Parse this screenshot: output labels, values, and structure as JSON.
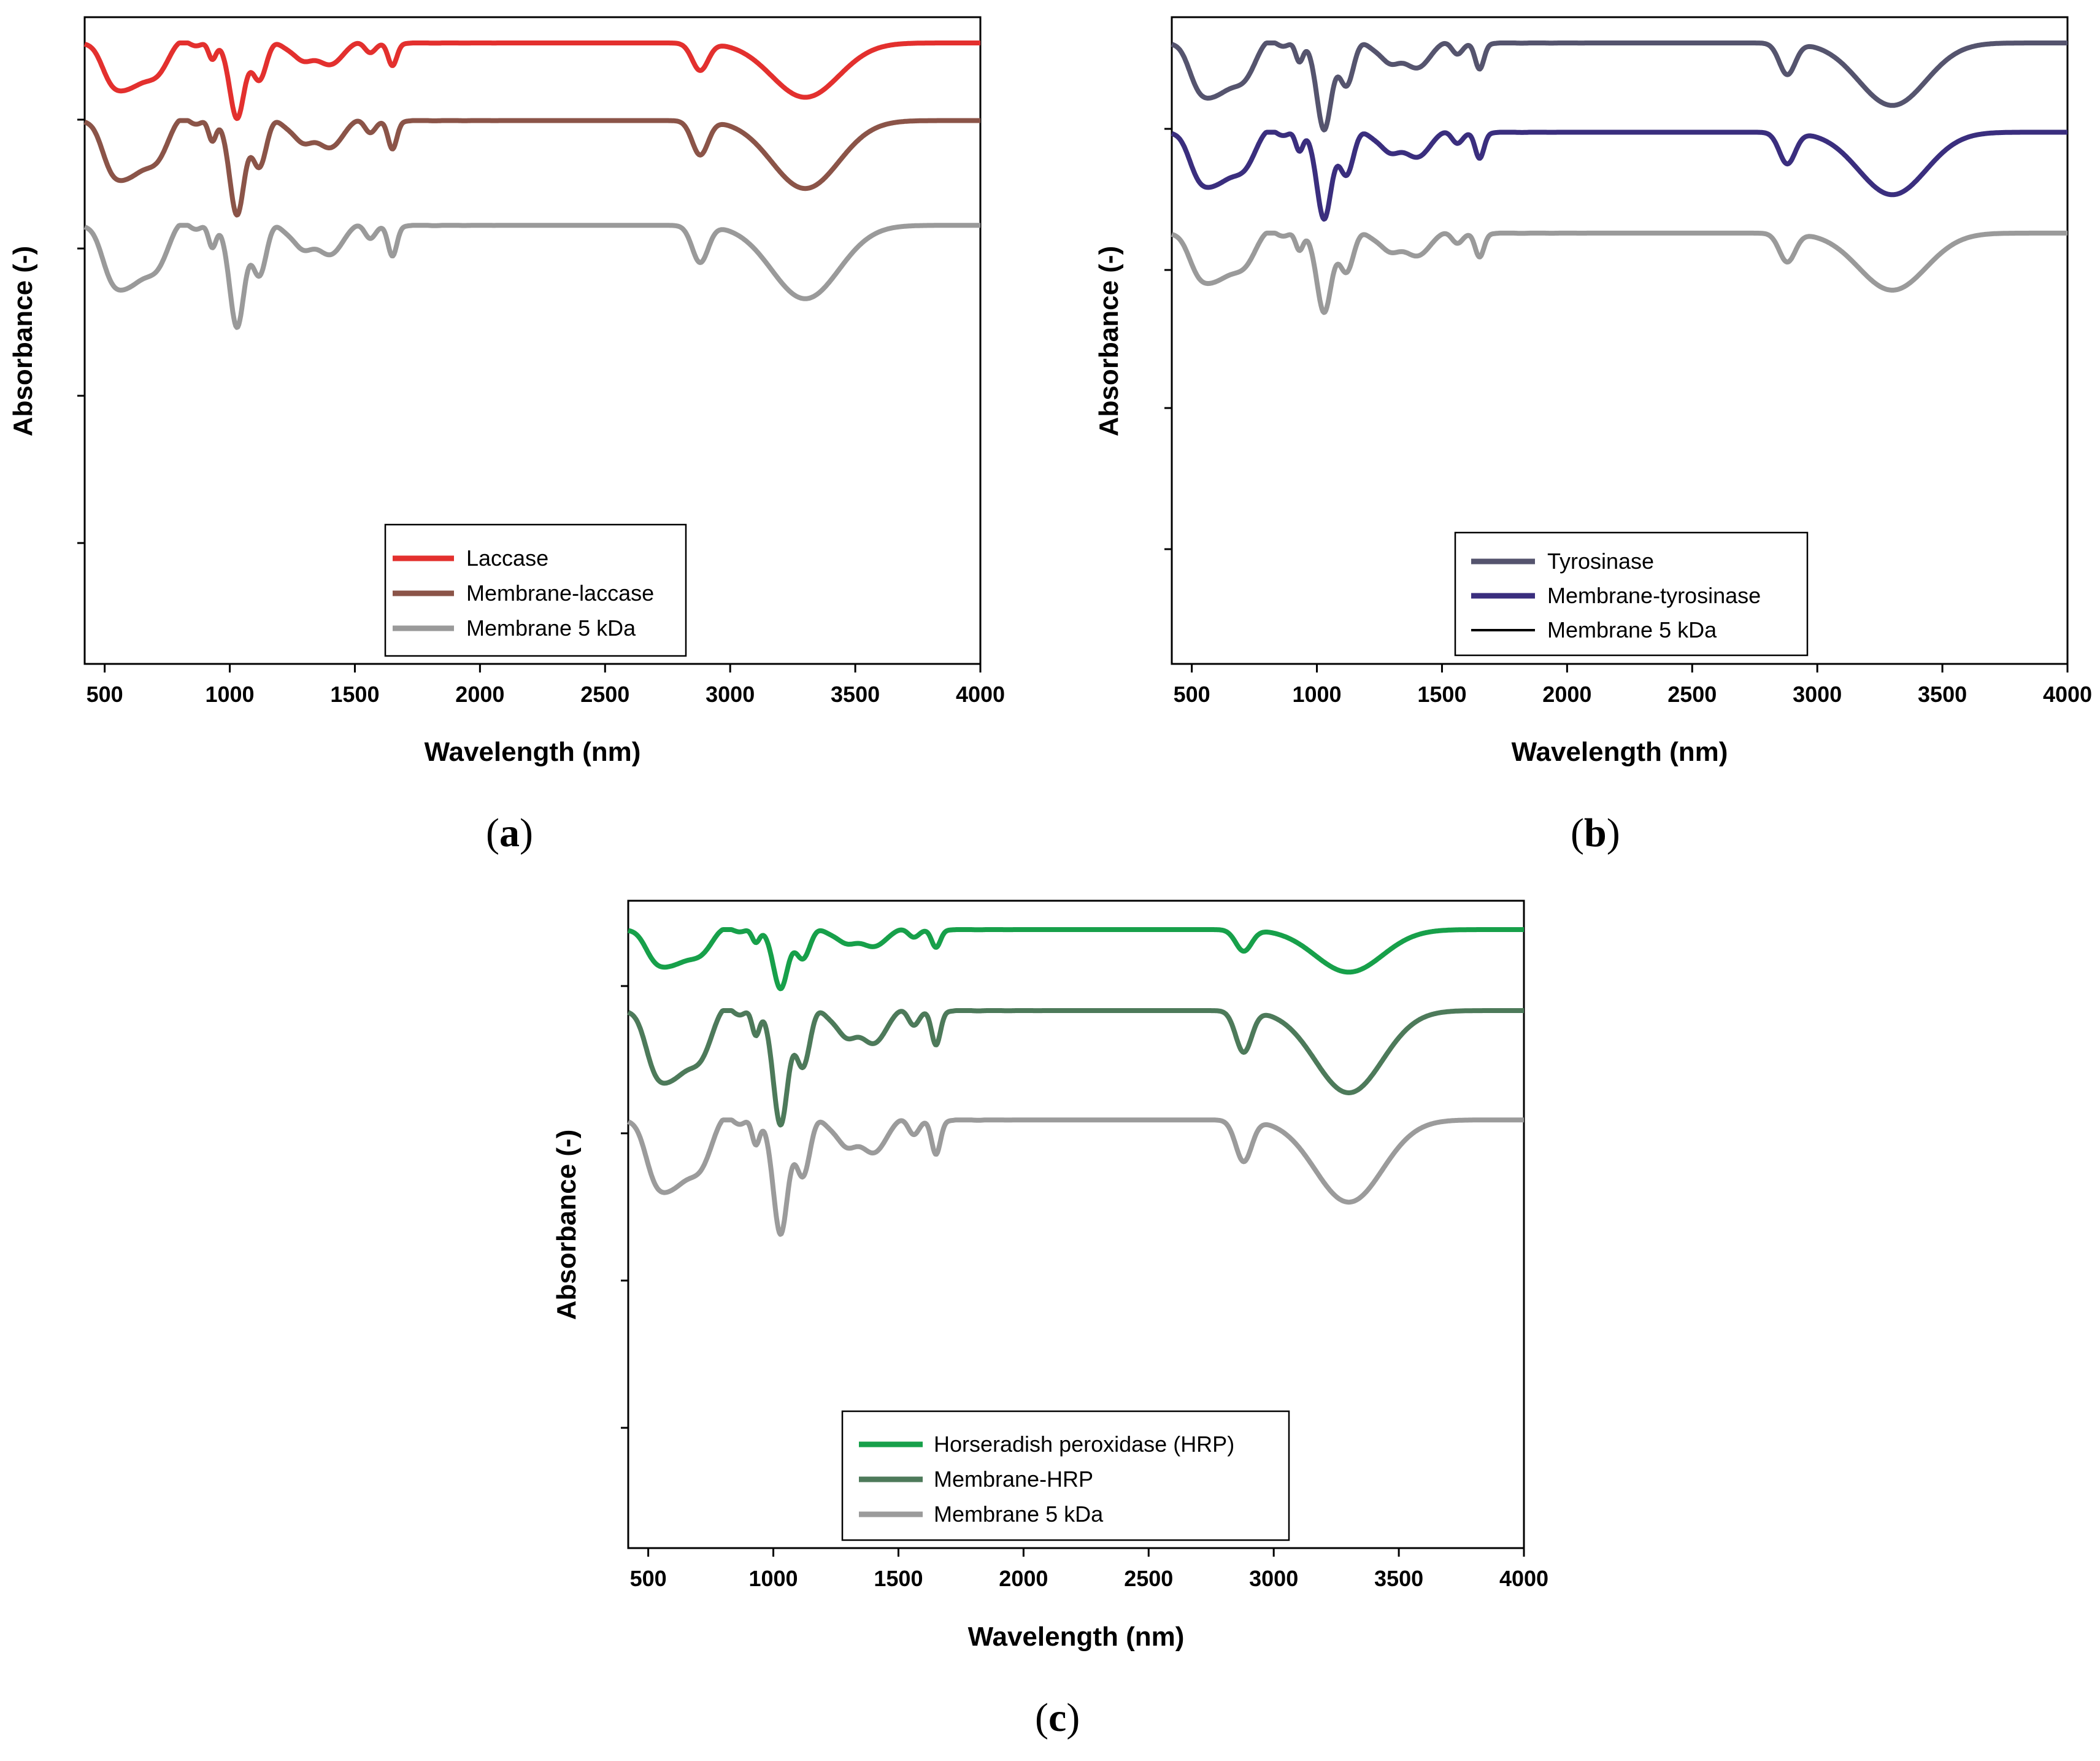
{
  "chart_data": [
    {
      "panel": "(a)",
      "type": "line",
      "xlabel": "Wavelength (nm)",
      "ylabel": "Absorbance (-)",
      "xlim": [
        420,
        4000
      ],
      "xticks": [
        500,
        1000,
        1500,
        2000,
        2500,
        3000,
        3500,
        4000
      ],
      "series": [
        {
          "name": "Laccase",
          "color": "#e3302e",
          "offset": 0.0,
          "depth": 1.0
        },
        {
          "name": "Membrane-laccase",
          "color": "#8b5448",
          "offset": 1.0,
          "depth": 1.25
        },
        {
          "name": "Membrane 5 kDa",
          "color": "#9a9a9a",
          "offset": 2.35,
          "depth": 1.35
        }
      ]
    },
    {
      "panel": "(b)",
      "type": "line",
      "xlabel": "Wavelength (nm)",
      "ylabel": "Absorbance (-)",
      "xlim": [
        420,
        4000
      ],
      "xticks": [
        500,
        1000,
        1500,
        2000,
        2500,
        3000,
        3500,
        4000
      ],
      "series": [
        {
          "name": "Tyrosinase",
          "color": "#55546e",
          "offset": 0.0,
          "depth": 1.15
        },
        {
          "name": "Membrane-tyrosinase",
          "color": "#3a2e7e",
          "offset": 1.15,
          "depth": 1.15
        },
        {
          "name": "Membrane 5 kDa",
          "color": "#9a9a9a",
          "offset": 2.45,
          "depth": 1.05
        }
      ],
      "legend_colors": [
        "#55546e",
        "#3a2e7e",
        "#000000"
      ]
    },
    {
      "panel": "(c)",
      "type": "line",
      "xlabel": "Wavelength (nm)",
      "ylabel": "Absorbance (-)",
      "xlim": [
        420,
        4000
      ],
      "xticks": [
        500,
        1000,
        1500,
        2000,
        2500,
        3000,
        3500,
        4000
      ],
      "series": [
        {
          "name": "Horseradish peroxidase (HRP)",
          "color": "#17a04a",
          "offset": 0.0,
          "depth": 0.75
        },
        {
          "name": "Membrane-HRP",
          "color": "#4d7a5a",
          "offset": 1.0,
          "depth": 1.45
        },
        {
          "name": "Membrane 5 kDa",
          "color": "#9b9b9b",
          "offset": 2.35,
          "depth": 1.45
        }
      ]
    }
  ],
  "panel_labels": [
    "a",
    "b",
    "c"
  ]
}
